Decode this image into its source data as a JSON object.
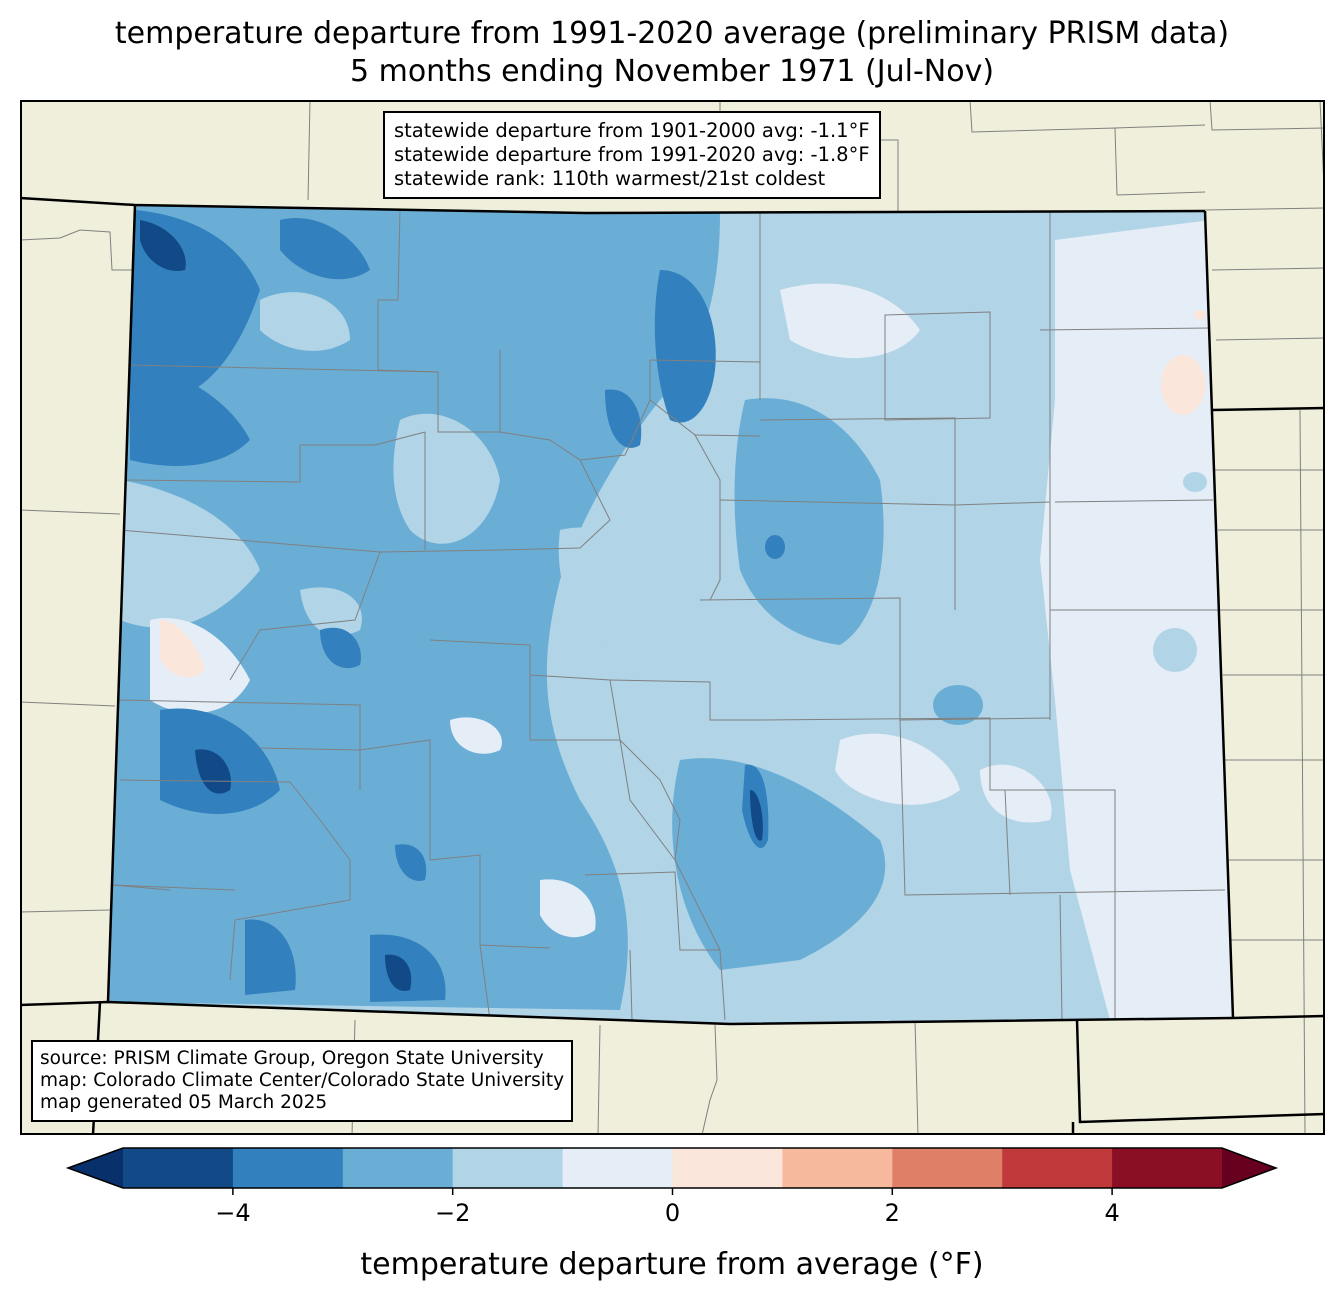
{
  "title": {
    "line1": "temperature departure from 1991-2020 average (preliminary PRISM data)",
    "line2": "5 months ending November 1971 (Jul-Nov)"
  },
  "stats": {
    "line1": "statewide departure from 1901-2000 avg: -1.1°F",
    "line2": "statewide departure from 1991-2020 avg: -1.8°F",
    "line3": "statewide rank: 110th warmest/21st coldest"
  },
  "source": {
    "line1": "source: PRISM Climate Group, Oregon State University",
    "line2": "map: Colorado Climate Center/Colorado State University",
    "line3": "map generated 05 March 2025"
  },
  "colorbar": {
    "label": "temperature departure from average (°F)",
    "ticks": [
      "−4",
      "−2",
      "0",
      "2",
      "4"
    ],
    "bins": [
      -5,
      -4,
      -3,
      -2,
      -1,
      0,
      1,
      2,
      3,
      4,
      5
    ],
    "colors": [
      "#08306b",
      "#114a87",
      "#3280bd",
      "#6aaed6",
      "#b1d4e7",
      "#e5eef6",
      "#fbe6dc",
      "#f7b99e",
      "#e07f67",
      "#c03a3b",
      "#8a0f24",
      "#67001f"
    ]
  },
  "map_colors": {
    "background": "#efefdc",
    "state_border": "#000000",
    "county_border": "#808080"
  }
}
